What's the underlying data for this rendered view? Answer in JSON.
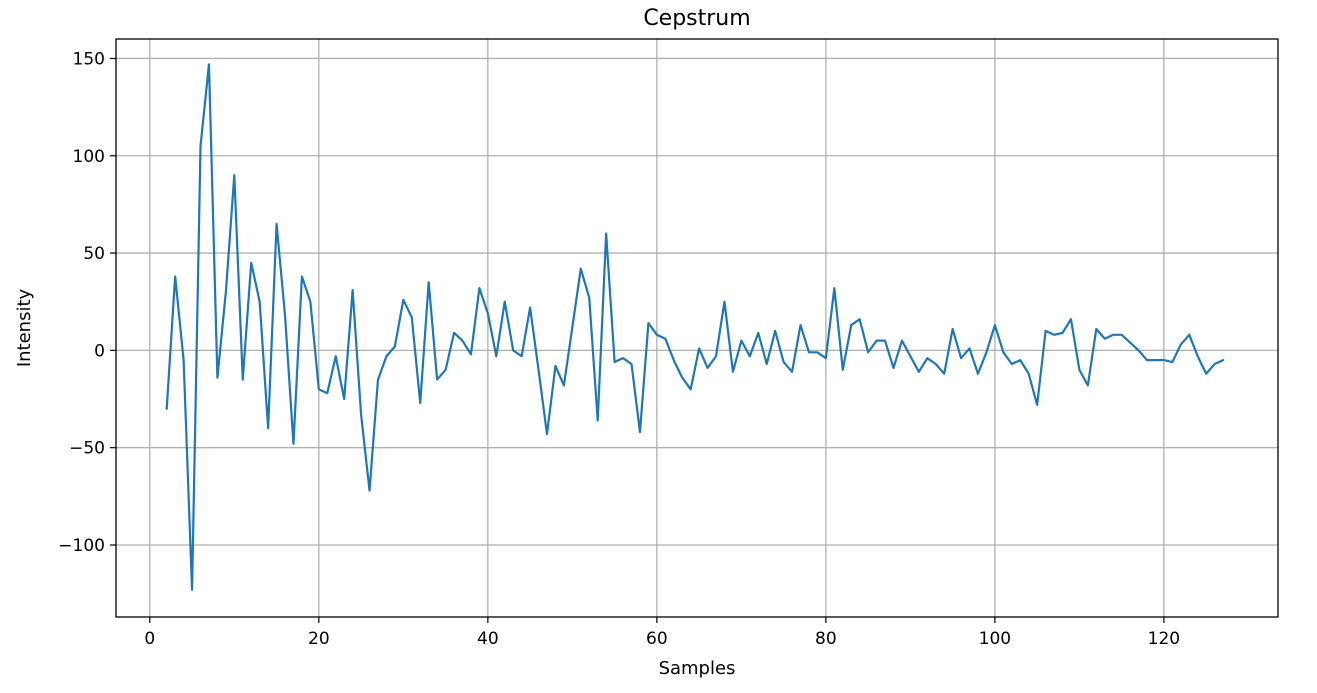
{
  "chart_data": {
    "type": "line",
    "title": "Cepstrum",
    "xlabel": "Samples",
    "ylabel": "Intensity",
    "xlim": [
      -4,
      133.5
    ],
    "ylim": [
      -137,
      160
    ],
    "xticks": [
      0,
      20,
      40,
      60,
      80,
      100,
      120
    ],
    "yticks": [
      -100,
      -50,
      0,
      50,
      100,
      150
    ],
    "ytick_labels": [
      "−100",
      "−50",
      "0",
      "50",
      "100",
      "150"
    ],
    "grid": true,
    "color": "#1f77b4",
    "x": [
      2,
      3,
      4,
      5,
      6,
      7,
      8,
      9,
      10,
      11,
      12,
      13,
      14,
      15,
      16,
      17,
      18,
      19,
      20,
      21,
      22,
      23,
      24,
      25,
      26,
      27,
      28,
      29,
      30,
      31,
      32,
      33,
      34,
      35,
      36,
      37,
      38,
      39,
      40,
      41,
      42,
      43,
      44,
      45,
      46,
      47,
      48,
      49,
      50,
      51,
      52,
      53,
      54,
      55,
      56,
      57,
      58,
      59,
      60,
      61,
      62,
      63,
      64,
      65,
      66,
      67,
      68,
      69,
      70,
      71,
      72,
      73,
      74,
      75,
      76,
      77,
      78,
      79,
      80,
      81,
      82,
      83,
      84,
      85,
      86,
      87,
      88,
      89,
      90,
      91,
      92,
      93,
      94,
      95,
      96,
      97,
      98,
      99,
      100,
      101,
      102,
      103,
      104,
      105,
      106,
      107,
      108,
      109,
      110,
      111,
      112,
      113,
      114,
      115,
      116,
      117,
      118,
      119,
      120,
      121,
      122,
      123,
      124,
      125,
      126,
      127
    ],
    "y": [
      -30,
      38,
      -5,
      -123,
      105,
      147,
      -14,
      30,
      90,
      -15,
      45,
      25,
      -40,
      65,
      18,
      -48,
      38,
      25,
      -20,
      -22,
      -3,
      -25,
      31,
      -33,
      -72,
      -15,
      -3,
      2,
      26,
      17,
      -27,
      35,
      -15,
      -10,
      9,
      5,
      -2,
      32,
      19,
      -3,
      25,
      0,
      -3,
      22,
      -10,
      -43,
      -8,
      -18,
      12,
      42,
      27,
      -36,
      60,
      -6,
      -4,
      -7,
      -42,
      14,
      8,
      6,
      -5,
      -14,
      -20,
      1,
      -9,
      -3,
      25,
      -11,
      5,
      -3,
      9,
      -7,
      10,
      -6,
      -11,
      13,
      -1,
      -1,
      -4,
      32,
      -10,
      13,
      16,
      -1,
      5,
      5,
      -9,
      5,
      -3,
      -11,
      -4,
      -7,
      -12,
      11,
      -4,
      1,
      -12,
      -1,
      13,
      -1,
      -7,
      -5,
      -12,
      -28,
      10,
      8,
      9,
      16,
      -10,
      -18,
      11,
      6,
      8,
      8,
      4,
      0,
      -5,
      -5,
      -5,
      -6,
      3,
      8,
      -3,
      -12,
      -7,
      -5
    ]
  }
}
